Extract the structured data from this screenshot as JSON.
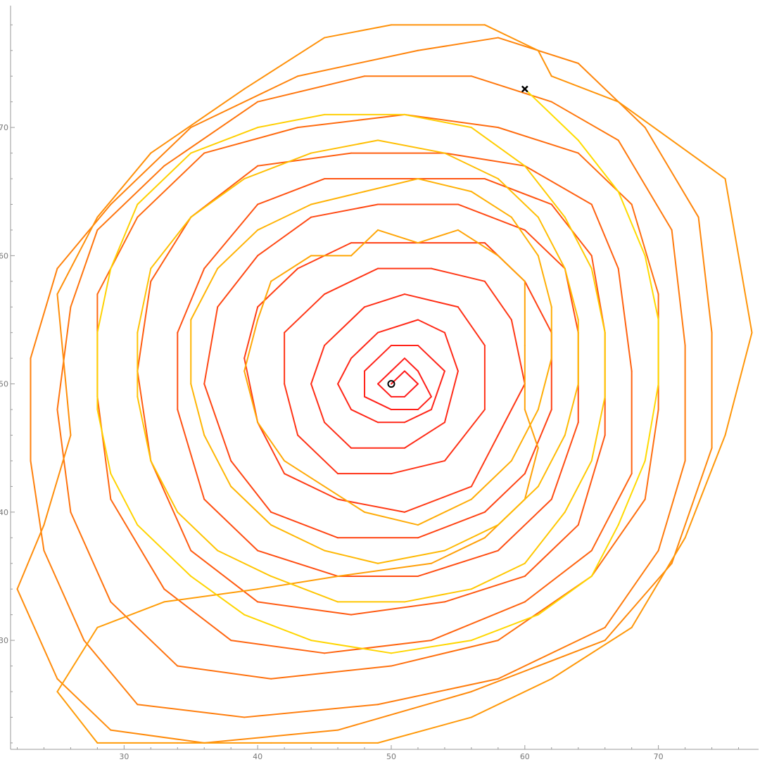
{
  "chart_data": {
    "type": "line",
    "title": "",
    "xlabel": "",
    "ylabel": "",
    "xlim": [
      21.5,
      77.5
    ],
    "ylim": [
      21.5,
      79.5
    ],
    "x_ticks": [
      30,
      40,
      50,
      60,
      70
    ],
    "y_ticks": [
      30,
      40,
      50,
      60,
      70
    ],
    "x_tick_labels": [
      "30",
      "40",
      "50",
      "60",
      "70"
    ],
    "y_tick_labels": [
      "30",
      "40",
      "50",
      "60",
      "70"
    ],
    "grid": false,
    "legend": "none",
    "color_gradient": {
      "from": "#ff1a1a",
      "to": "#ffdd00",
      "along": "path order (start red, end yellow)"
    },
    "start_marker": {
      "symbol": "circle",
      "x": 50,
      "y": 50
    },
    "end_marker": {
      "symbol": "cross",
      "x": 60,
      "y": 73
    },
    "series": [
      {
        "points": [
          [
            50,
            50
          ],
          [
            51,
            51
          ],
          [
            52,
            50
          ],
          [
            51,
            49
          ],
          [
            50,
            49
          ],
          [
            49,
            50
          ],
          [
            50,
            51
          ],
          [
            51,
            52
          ],
          [
            52,
            51
          ],
          [
            53,
            49
          ],
          [
            52,
            48
          ],
          [
            50,
            48
          ],
          [
            48,
            49
          ],
          [
            48,
            51
          ],
          [
            49,
            52
          ],
          [
            50,
            53
          ],
          [
            52,
            53
          ],
          [
            54,
            51
          ],
          [
            53,
            48
          ],
          [
            51,
            47
          ],
          [
            49,
            47
          ],
          [
            47,
            48
          ],
          [
            46,
            50
          ],
          [
            47,
            52
          ],
          [
            49,
            54
          ],
          [
            52,
            55
          ],
          [
            54,
            54
          ],
          [
            55,
            51
          ],
          [
            54,
            47
          ],
          [
            51,
            45
          ],
          [
            47,
            45
          ],
          [
            45,
            47
          ],
          [
            44,
            50
          ],
          [
            45,
            53
          ],
          [
            48,
            56
          ],
          [
            51,
            57
          ],
          [
            55,
            56
          ],
          [
            57,
            53
          ],
          [
            57,
            48
          ],
          [
            54,
            44
          ],
          [
            50,
            43
          ],
          [
            46,
            43
          ],
          [
            43,
            46
          ],
          [
            42,
            50
          ],
          [
            42,
            54
          ],
          [
            45,
            57
          ],
          [
            49,
            59
          ],
          [
            53,
            59
          ],
          [
            57,
            58
          ],
          [
            59,
            55
          ],
          [
            60,
            50
          ],
          [
            58,
            46
          ],
          [
            56,
            42
          ],
          [
            51,
            40
          ],
          [
            46,
            41
          ],
          [
            42,
            43
          ],
          [
            40,
            47
          ],
          [
            39,
            52
          ],
          [
            40,
            56
          ],
          [
            43,
            59
          ],
          [
            47,
            61
          ],
          [
            52,
            61
          ],
          [
            57,
            61
          ],
          [
            60,
            58
          ],
          [
            62,
            54
          ],
          [
            62,
            48
          ],
          [
            60,
            43
          ],
          [
            57,
            40
          ],
          [
            52,
            38
          ],
          [
            46,
            38
          ],
          [
            41,
            40
          ],
          [
            38,
            44
          ],
          [
            36,
            50
          ],
          [
            37,
            56
          ],
          [
            40,
            60
          ],
          [
            44,
            63
          ],
          [
            49,
            64
          ],
          [
            55,
            64
          ],
          [
            60,
            62
          ],
          [
            63,
            59
          ],
          [
            64,
            54
          ],
          [
            64,
            47
          ],
          [
            62,
            41
          ],
          [
            58,
            37
          ],
          [
            52,
            35
          ],
          [
            46,
            35
          ],
          [
            40,
            37
          ],
          [
            36,
            41
          ],
          [
            34,
            48
          ],
          [
            34,
            54
          ],
          [
            36,
            59
          ],
          [
            40,
            64
          ],
          [
            45,
            66
          ],
          [
            51,
            66
          ],
          [
            57,
            66
          ],
          [
            62,
            64
          ],
          [
            65,
            60
          ],
          [
            66,
            54
          ],
          [
            66,
            46
          ],
          [
            64,
            39
          ],
          [
            60,
            35
          ],
          [
            54,
            33
          ],
          [
            47,
            32
          ],
          [
            40,
            33
          ],
          [
            35,
            37
          ],
          [
            32,
            44
          ],
          [
            31,
            51
          ],
          [
            32,
            58
          ],
          [
            35,
            63
          ],
          [
            40,
            67
          ],
          [
            47,
            68
          ],
          [
            54,
            68
          ],
          [
            60,
            67
          ],
          [
            65,
            64
          ],
          [
            67,
            59
          ],
          [
            68,
            51
          ],
          [
            68,
            43
          ],
          [
            65,
            37
          ],
          [
            60,
            33
          ],
          [
            53,
            30
          ],
          [
            45,
            29
          ],
          [
            38,
            30
          ],
          [
            33,
            34
          ],
          [
            29,
            41
          ],
          [
            28,
            49
          ],
          [
            28,
            57
          ],
          [
            31,
            63
          ],
          [
            36,
            68
          ],
          [
            43,
            70
          ],
          [
            51,
            71
          ],
          [
            58,
            70
          ],
          [
            64,
            68
          ],
          [
            68,
            64
          ],
          [
            70,
            57
          ],
          [
            70,
            48
          ],
          [
            69,
            41
          ],
          [
            65,
            35
          ],
          [
            58,
            30
          ],
          [
            50,
            28
          ],
          [
            41,
            27
          ],
          [
            34,
            28
          ],
          [
            29,
            33
          ],
          [
            26,
            40
          ],
          [
            25,
            48
          ],
          [
            26,
            56
          ],
          [
            28,
            62
          ],
          [
            33,
            67
          ],
          [
            40,
            72
          ],
          [
            48,
            74
          ],
          [
            56,
            74
          ],
          [
            62,
            72
          ],
          [
            67,
            69
          ],
          [
            71,
            62
          ],
          [
            72,
            53
          ],
          [
            72,
            44
          ],
          [
            70,
            37
          ],
          [
            66,
            31
          ],
          [
            58,
            27
          ],
          [
            49,
            25
          ],
          [
            39,
            24
          ],
          [
            31,
            25
          ],
          [
            27,
            30
          ],
          [
            24,
            37
          ],
          [
            23,
            44
          ],
          [
            23,
            52
          ],
          [
            25,
            59
          ],
          [
            29,
            64
          ],
          [
            35,
            70
          ],
          [
            43,
            74
          ],
          [
            52,
            76
          ],
          [
            58,
            77
          ],
          [
            64,
            75
          ],
          [
            69,
            70
          ],
          [
            73,
            63
          ],
          [
            74,
            54
          ],
          [
            74,
            45
          ],
          [
            71,
            36
          ],
          [
            66,
            30
          ],
          [
            56,
            26
          ],
          [
            46,
            23
          ],
          [
            36,
            22
          ],
          [
            29,
            23
          ],
          [
            25,
            27
          ],
          [
            22,
            34
          ],
          [
            24,
            39
          ],
          [
            26,
            46
          ],
          [
            25,
            57
          ],
          [
            28,
            63
          ],
          [
            32,
            68
          ],
          [
            39,
            73
          ],
          [
            45,
            77
          ],
          [
            50,
            78
          ],
          [
            57,
            78
          ],
          [
            61,
            76
          ],
          [
            62,
            74
          ],
          [
            67,
            72
          ],
          [
            75,
            66
          ],
          [
            77,
            54
          ],
          [
            75,
            46
          ],
          [
            72,
            38
          ],
          [
            68,
            31
          ],
          [
            62,
            27
          ],
          [
            56,
            24
          ],
          [
            49,
            22
          ],
          [
            41,
            22
          ],
          [
            34,
            22
          ],
          [
            28,
            22
          ],
          [
            25,
            26
          ],
          [
            28,
            31
          ],
          [
            33,
            33
          ],
          [
            40,
            34
          ],
          [
            46,
            35
          ],
          [
            53,
            36
          ],
          [
            57,
            38
          ],
          [
            60,
            41
          ],
          [
            61,
            45
          ],
          [
            60,
            48
          ],
          [
            60,
            53
          ],
          [
            60,
            58
          ],
          [
            58,
            60
          ],
          [
            55,
            62
          ],
          [
            52,
            61
          ],
          [
            49,
            62
          ],
          [
            47,
            60
          ],
          [
            44,
            60
          ],
          [
            41,
            58
          ],
          [
            40,
            55
          ],
          [
            39,
            51
          ],
          [
            40,
            47
          ],
          [
            42,
            44
          ],
          [
            45,
            42
          ],
          [
            48,
            40
          ],
          [
            52,
            39
          ],
          [
            56,
            41
          ],
          [
            59,
            44
          ],
          [
            61,
            48
          ],
          [
            62,
            52
          ],
          [
            62,
            56
          ],
          [
            61,
            60
          ],
          [
            59,
            63
          ],
          [
            56,
            65
          ],
          [
            52,
            66
          ],
          [
            48,
            65
          ],
          [
            44,
            64
          ],
          [
            40,
            62
          ],
          [
            37,
            59
          ],
          [
            35,
            55
          ],
          [
            35,
            50
          ],
          [
            36,
            46
          ],
          [
            38,
            42
          ],
          [
            41,
            39
          ],
          [
            45,
            37
          ],
          [
            49,
            36
          ],
          [
            54,
            37
          ],
          [
            58,
            39
          ],
          [
            61,
            42
          ],
          [
            63,
            46
          ],
          [
            64,
            50
          ],
          [
            64,
            55
          ],
          [
            63,
            59
          ],
          [
            61,
            63
          ],
          [
            58,
            66
          ],
          [
            54,
            68
          ],
          [
            49,
            69
          ],
          [
            44,
            68
          ],
          [
            39,
            66
          ],
          [
            35,
            63
          ],
          [
            32,
            59
          ],
          [
            31,
            54
          ],
          [
            31,
            49
          ],
          [
            32,
            44
          ],
          [
            34,
            40
          ],
          [
            37,
            37
          ],
          [
            41,
            35
          ],
          [
            46,
            33
          ],
          [
            51,
            33
          ],
          [
            56,
            34
          ],
          [
            60,
            36
          ],
          [
            63,
            40
          ],
          [
            65,
            44
          ],
          [
            66,
            49
          ],
          [
            66,
            54
          ],
          [
            65,
            59
          ],
          [
            63,
            63
          ],
          [
            60,
            67
          ],
          [
            56,
            70
          ],
          [
            51,
            71
          ],
          [
            45,
            71
          ],
          [
            40,
            70
          ],
          [
            35,
            68
          ],
          [
            31,
            64
          ],
          [
            29,
            59
          ],
          [
            28,
            54
          ],
          [
            28,
            48
          ],
          [
            29,
            43
          ],
          [
            31,
            39
          ],
          [
            35,
            35
          ],
          [
            39,
            32
          ],
          [
            44,
            30
          ],
          [
            50,
            29
          ],
          [
            56,
            30
          ],
          [
            61,
            32
          ],
          [
            65,
            35
          ],
          [
            67,
            39
          ],
          [
            69,
            44
          ],
          [
            70,
            50
          ],
          [
            70,
            55
          ],
          [
            69,
            60
          ],
          [
            67,
            65
          ],
          [
            64,
            69
          ],
          [
            60,
            73
          ]
        ]
      }
    ]
  }
}
